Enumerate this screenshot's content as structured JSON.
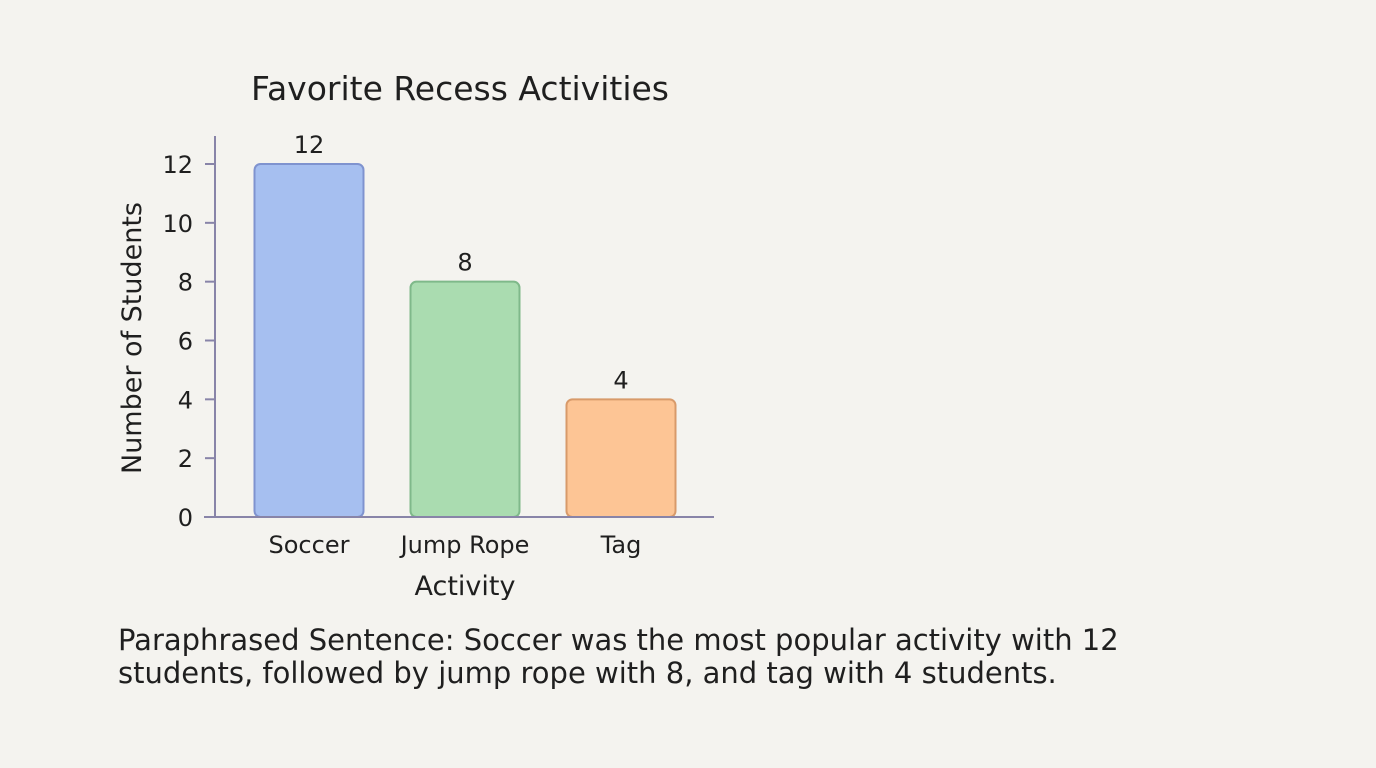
{
  "chart_data": {
    "type": "bar",
    "title": "Favorite Recess Activities",
    "xlabel": "Activity",
    "ylabel": "Number of Students",
    "categories": [
      "Soccer",
      "Jump Rope",
      "Tag"
    ],
    "values": [
      12,
      8,
      4
    ],
    "ylim": [
      0,
      12
    ],
    "yticks": [
      0,
      2,
      4,
      6,
      8,
      10,
      12
    ],
    "grid": false,
    "data_labels": true,
    "colors": [
      {
        "fill": "#a6bff0",
        "stroke": "#7f93cf"
      },
      {
        "fill": "#aadcb0",
        "stroke": "#7fb98a"
      },
      {
        "fill": "#fdc595",
        "stroke": "#d89a6a"
      }
    ]
  },
  "caption": "Paraphrased Sentence: Soccer was the most popular activity with 12 students, followed by jump rope with 8, and tag with 4 students."
}
